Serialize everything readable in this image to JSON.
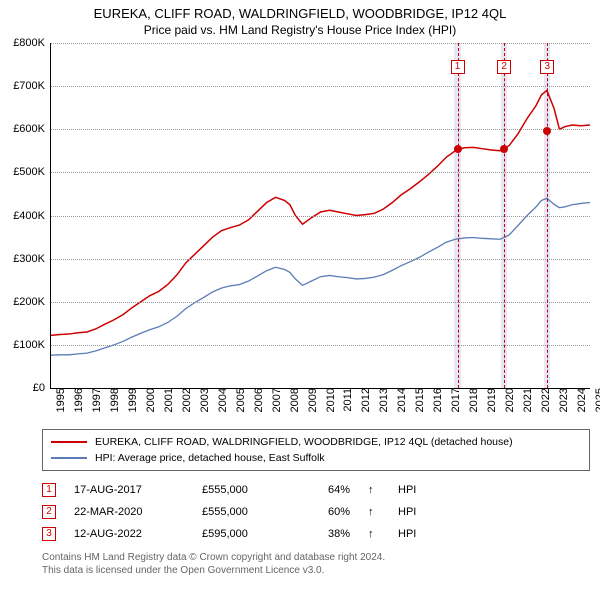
{
  "title": {
    "main": "EUREKA, CLIFF ROAD, WALDRINGFIELD, WOODBRIDGE, IP12 4QL",
    "sub": "Price paid vs. HM Land Registry's House Price Index (HPI)"
  },
  "chart": {
    "type": "line",
    "background_color": "#ffffff",
    "grid_color": "#999999",
    "x": {
      "min": 1995,
      "max": 2025,
      "ticks": [
        1995,
        1996,
        1997,
        1998,
        1999,
        2000,
        2001,
        2002,
        2003,
        2004,
        2005,
        2006,
        2007,
        2008,
        2009,
        2010,
        2011,
        2012,
        2013,
        2014,
        2015,
        2016,
        2017,
        2018,
        2019,
        2020,
        2021,
        2022,
        2023,
        2024,
        2025
      ]
    },
    "y": {
      "min": 0,
      "max": 800000,
      "ticks": [
        0,
        100000,
        200000,
        300000,
        400000,
        500000,
        600000,
        700000,
        800000
      ],
      "labels": [
        "£0",
        "£100K",
        "£200K",
        "£300K",
        "£400K",
        "£500K",
        "£600K",
        "£700K",
        "£800K"
      ]
    },
    "series": [
      {
        "id": "subject",
        "color": "#cc0000",
        "line_width": 1.5,
        "label": "EUREKA, CLIFF ROAD, WALDRINGFIELD, WOODBRIDGE, IP12 4QL (detached house)",
        "points": [
          [
            1995,
            122000
          ],
          [
            1995.5,
            124000
          ],
          [
            1996,
            125000
          ],
          [
            1996.5,
            128000
          ],
          [
            1997,
            130000
          ],
          [
            1997.5,
            137000
          ],
          [
            1998,
            148000
          ],
          [
            1998.5,
            158000
          ],
          [
            1999,
            170000
          ],
          [
            1999.5,
            186000
          ],
          [
            2000,
            200000
          ],
          [
            2000.5,
            214000
          ],
          [
            2001,
            224000
          ],
          [
            2001.5,
            240000
          ],
          [
            2002,
            262000
          ],
          [
            2002.5,
            290000
          ],
          [
            2003,
            310000
          ],
          [
            2003.5,
            330000
          ],
          [
            2004,
            350000
          ],
          [
            2004.5,
            365000
          ],
          [
            2005,
            372000
          ],
          [
            2005.5,
            378000
          ],
          [
            2006,
            390000
          ],
          [
            2006.5,
            410000
          ],
          [
            2007,
            430000
          ],
          [
            2007.5,
            442000
          ],
          [
            2008,
            435000
          ],
          [
            2008.3,
            425000
          ],
          [
            2008.6,
            400000
          ],
          [
            2009,
            380000
          ],
          [
            2009.5,
            395000
          ],
          [
            2010,
            408000
          ],
          [
            2010.5,
            412000
          ],
          [
            2011,
            408000
          ],
          [
            2011.5,
            404000
          ],
          [
            2012,
            400000
          ],
          [
            2012.5,
            402000
          ],
          [
            2013,
            405000
          ],
          [
            2013.5,
            415000
          ],
          [
            2014,
            430000
          ],
          [
            2014.5,
            448000
          ],
          [
            2015,
            462000
          ],
          [
            2015.5,
            478000
          ],
          [
            2016,
            495000
          ],
          [
            2016.5,
            514000
          ],
          [
            2017,
            535000
          ],
          [
            2017.5,
            550000
          ],
          [
            2018,
            557000
          ],
          [
            2018.5,
            558000
          ],
          [
            2019,
            555000
          ],
          [
            2019.5,
            552000
          ],
          [
            2020,
            550000
          ],
          [
            2020.5,
            562000
          ],
          [
            2021,
            590000
          ],
          [
            2021.5,
            625000
          ],
          [
            2022,
            655000
          ],
          [
            2022.3,
            680000
          ],
          [
            2022.6,
            690000
          ],
          [
            2023,
            648000
          ],
          [
            2023.3,
            600000
          ],
          [
            2023.6,
            606000
          ],
          [
            2024,
            610000
          ],
          [
            2024.5,
            608000
          ],
          [
            2025,
            610000
          ]
        ]
      },
      {
        "id": "hpi",
        "color": "#5b7cb8",
        "line_width": 1.3,
        "label": "HPI: Average price, detached house, East Suffolk",
        "points": [
          [
            1995,
            76000
          ],
          [
            1995.5,
            77000
          ],
          [
            1996,
            77000
          ],
          [
            1996.5,
            79000
          ],
          [
            1997,
            81000
          ],
          [
            1997.5,
            86000
          ],
          [
            1998,
            93000
          ],
          [
            1998.5,
            100000
          ],
          [
            1999,
            108000
          ],
          [
            1999.5,
            118000
          ],
          [
            2000,
            127000
          ],
          [
            2000.5,
            135000
          ],
          [
            2001,
            142000
          ],
          [
            2001.5,
            152000
          ],
          [
            2002,
            166000
          ],
          [
            2002.5,
            184000
          ],
          [
            2003,
            198000
          ],
          [
            2003.5,
            210000
          ],
          [
            2004,
            223000
          ],
          [
            2004.5,
            232000
          ],
          [
            2005,
            237000
          ],
          [
            2005.5,
            240000
          ],
          [
            2006,
            248000
          ],
          [
            2006.5,
            260000
          ],
          [
            2007,
            272000
          ],
          [
            2007.5,
            280000
          ],
          [
            2008,
            275000
          ],
          [
            2008.3,
            268000
          ],
          [
            2008.6,
            253000
          ],
          [
            2009,
            238000
          ],
          [
            2009.5,
            248000
          ],
          [
            2010,
            258000
          ],
          [
            2010.5,
            261000
          ],
          [
            2011,
            258000
          ],
          [
            2011.5,
            256000
          ],
          [
            2012,
            253000
          ],
          [
            2012.5,
            254000
          ],
          [
            2013,
            257000
          ],
          [
            2013.5,
            263000
          ],
          [
            2014,
            273000
          ],
          [
            2014.5,
            284000
          ],
          [
            2015,
            293000
          ],
          [
            2015.5,
            303000
          ],
          [
            2016,
            315000
          ],
          [
            2016.5,
            326000
          ],
          [
            2017,
            338000
          ],
          [
            2017.5,
            345000
          ],
          [
            2018,
            348000
          ],
          [
            2018.5,
            349000
          ],
          [
            2019,
            347000
          ],
          [
            2019.5,
            346000
          ],
          [
            2020,
            345000
          ],
          [
            2020.5,
            355000
          ],
          [
            2021,
            377000
          ],
          [
            2021.5,
            400000
          ],
          [
            2022,
            420000
          ],
          [
            2022.3,
            435000
          ],
          [
            2022.6,
            440000
          ],
          [
            2023,
            426000
          ],
          [
            2023.3,
            418000
          ],
          [
            2023.6,
            420000
          ],
          [
            2024,
            425000
          ],
          [
            2024.5,
            428000
          ],
          [
            2025,
            430000
          ]
        ]
      }
    ],
    "shaded_bands": [
      {
        "x_start": 2017.45,
        "x_end": 2017.8,
        "color": "#e6e6f5"
      },
      {
        "x_start": 2020.05,
        "x_end": 2020.4,
        "color": "#e6e6f5"
      },
      {
        "x_start": 2022.45,
        "x_end": 2022.8,
        "color": "#e6e6f5"
      }
    ],
    "markers": [
      {
        "n": "1",
        "x": 2017.63,
        "y": 555000,
        "dot_color": "#cc0000",
        "box_y": 760000
      },
      {
        "n": "2",
        "x": 2020.22,
        "y": 555000,
        "dot_color": "#cc0000",
        "box_y": 760000
      },
      {
        "n": "3",
        "x": 2022.62,
        "y": 595000,
        "dot_color": "#cc0000",
        "box_y": 760000
      }
    ]
  },
  "legend": {
    "rows": [
      {
        "color": "#cc0000",
        "label_path": "chart.series.0.label"
      },
      {
        "color": "#5b7cb8",
        "label_path": "chart.series.1.label"
      }
    ]
  },
  "transactions": [
    {
      "n": "1",
      "date": "17-AUG-2017",
      "price": "£555,000",
      "pct": "64%",
      "arrow": "↑",
      "rel": "HPI"
    },
    {
      "n": "2",
      "date": "22-MAR-2020",
      "price": "£555,000",
      "pct": "60%",
      "arrow": "↑",
      "rel": "HPI"
    },
    {
      "n": "3",
      "date": "12-AUG-2022",
      "price": "£595,000",
      "pct": "38%",
      "arrow": "↑",
      "rel": "HPI"
    }
  ],
  "footnote": {
    "line1": "Contains HM Land Registry data © Crown copyright and database right 2024.",
    "line2": "This data is licensed under the Open Government Licence v3.0."
  }
}
